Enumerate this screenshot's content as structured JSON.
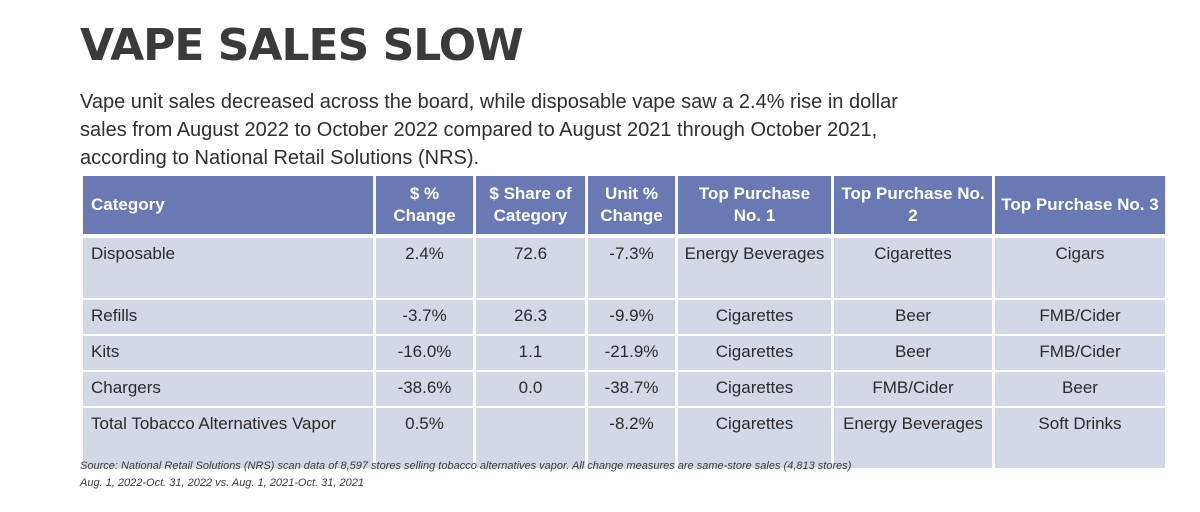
{
  "title": "VAPE SALES SLOW",
  "intro": "Vape unit sales decreased across the board, while disposable vape saw a 2.4% rise in dollar sales from August 2022 to October 2022 compared to August 2021 through October 2021, according to National Retail Solutions (NRS).",
  "table": {
    "headers": [
      "Category",
      "$ % Change",
      "$ Share of Category",
      "Unit % Change",
      "Top Purchase No. 1",
      "Top Purchase No. 2",
      "Top Purchase No. 3"
    ],
    "rows": [
      [
        "Disposable",
        "2.4%",
        "72.6",
        "-7.3%",
        "Energy Beverages",
        "Cigarettes",
        "Cigars"
      ],
      [
        "Refills",
        "-3.7%",
        "26.3",
        "-9.9%",
        "Cigarettes",
        "Beer",
        "FMB/Cider"
      ],
      [
        "Kits",
        "-16.0%",
        "1.1",
        "-21.9%",
        "Cigarettes",
        "Beer",
        "FMB/Cider"
      ],
      [
        "Chargers",
        "-38.6%",
        "0.0",
        "-38.7%",
        "Cigarettes",
        "FMB/Cider",
        "Beer"
      ],
      [
        "Total Tobacco Alternatives Vapor",
        "0.5%",
        "",
        "-8.2%",
        "Cigarettes",
        "Energy Beverages",
        "Soft Drinks"
      ]
    ]
  },
  "source_line1": "Source: National Retail Solutions (NRS) scan data of 8,597 stores selling tobacco alternatives vapor. All change measures are same-store sales (4,813 stores)",
  "source_line2": "Aug. 1, 2022-Oct. 31, 2022 vs. Aug. 1, 2021-Oct. 31, 2021",
  "colors": {
    "header_bg": "#6a79b4",
    "cell_bg": "#d3d8e6",
    "title": "#3a3a3a"
  }
}
